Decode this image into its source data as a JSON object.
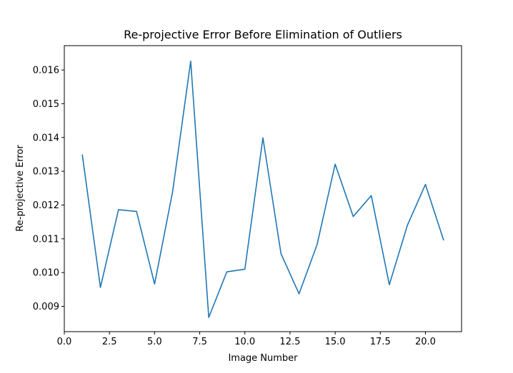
{
  "chart_data": {
    "type": "line",
    "title": "Re-projective Error Before Elimination of Outliers",
    "xlabel": "Image Number",
    "ylabel": "Re-projective Error",
    "xlim": [
      0.0,
      22.0
    ],
    "ylim": [
      0.00825,
      0.01672
    ],
    "xticks": [
      0.0,
      2.5,
      5.0,
      7.5,
      10.0,
      12.5,
      15.0,
      17.5,
      20.0
    ],
    "xtick_labels": [
      "0.0",
      "2.5",
      "5.0",
      "7.5",
      "10.0",
      "12.5",
      "15.0",
      "17.5",
      "20.0"
    ],
    "yticks": [
      0.009,
      0.01,
      0.011,
      0.012,
      0.013,
      0.014,
      0.015,
      0.016
    ],
    "ytick_labels": [
      "0.009",
      "0.010",
      "0.011",
      "0.012",
      "0.013",
      "0.014",
      "0.015",
      "0.016"
    ],
    "grid": false,
    "series": [
      {
        "color": "#1f77b4",
        "x": [
          1,
          2,
          3,
          4,
          5,
          6,
          7,
          8,
          9,
          10,
          11,
          12,
          13,
          14,
          15,
          16,
          17,
          18,
          19,
          20,
          21
        ],
        "values": [
          0.01348,
          0.00956,
          0.01186,
          0.01181,
          0.00966,
          0.0124,
          0.01626,
          0.00867,
          0.01002,
          0.0101,
          0.01399,
          0.01056,
          0.00937,
          0.01083,
          0.01321,
          0.01166,
          0.01228,
          0.00964,
          0.0114,
          0.01261,
          0.01097
        ]
      }
    ]
  }
}
